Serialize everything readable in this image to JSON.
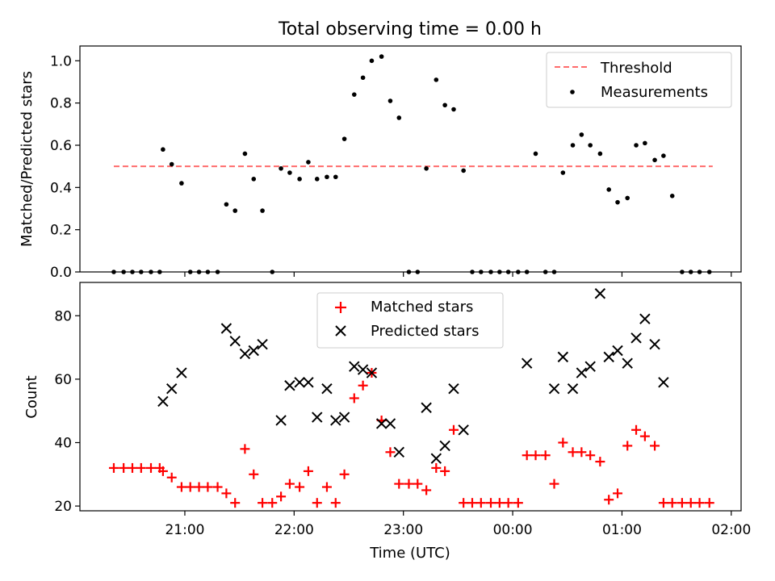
{
  "title": "Total observing time = 0.00 h",
  "x_axis": {
    "label": "Time (UTC)",
    "ticks": [
      {
        "value": 20.98,
        "label": "21:00"
      },
      {
        "value": 21.98,
        "label": "22:00"
      },
      {
        "value": 22.98,
        "label": "23:00"
      },
      {
        "value": 23.98,
        "label": "00:00"
      },
      {
        "value": 24.98,
        "label": "01:00"
      },
      {
        "value": 25.98,
        "label": "02:00"
      }
    ]
  },
  "chart_data": [
    {
      "type": "scatter",
      "ylabel": "Matched/Predicted stars",
      "xlabel": "",
      "xlim": [
        20.02,
        26.07
      ],
      "ylim": [
        0.0,
        1.07
      ],
      "yticks": [
        {
          "value": 0.0,
          "label": "0.0"
        },
        {
          "value": 0.2,
          "label": "0.2"
        },
        {
          "value": 0.4,
          "label": "0.4"
        },
        {
          "value": 0.6,
          "label": "0.6"
        },
        {
          "value": 0.8,
          "label": "0.8"
        },
        {
          "value": 1.0,
          "label": "1.0"
        }
      ],
      "legend": {
        "position": "upper right",
        "entries": [
          "Threshold",
          "Measurements"
        ]
      },
      "threshold": {
        "name": "Threshold",
        "y": 0.5,
        "x_range": [
          20.33,
          25.81
        ],
        "color": "#ff6b6b",
        "style": "dashed"
      },
      "series": [
        {
          "name": "Measurements",
          "color": "#000000",
          "x": [
            20.33,
            20.42,
            20.5,
            20.58,
            20.67,
            20.75,
            20.78,
            20.86,
            20.95,
            21.03,
            21.11,
            21.19,
            21.28,
            21.36,
            21.44,
            21.53,
            21.61,
            21.69,
            21.78,
            21.86,
            21.94,
            22.03,
            22.11,
            22.19,
            22.28,
            22.36,
            22.44,
            22.53,
            22.61,
            22.69,
            22.78,
            22.86,
            22.94,
            23.03,
            23.11,
            23.19,
            23.28,
            23.36,
            23.44,
            23.53,
            23.61,
            23.69,
            23.78,
            23.86,
            23.94,
            24.03,
            24.11,
            24.19,
            24.28,
            24.36,
            24.44,
            24.53,
            24.61,
            24.69,
            24.78,
            24.86,
            24.94,
            25.03,
            25.11,
            25.19,
            25.28,
            25.36,
            25.44,
            25.53,
            25.61,
            25.69,
            25.78
          ],
          "y": [
            0.0,
            0.0,
            0.0,
            0.0,
            0.0,
            0.0,
            0.58,
            0.51,
            0.42,
            0.0,
            0.0,
            0.0,
            0.0,
            0.32,
            0.29,
            0.56,
            0.44,
            0.29,
            0.0,
            0.49,
            0.47,
            0.44,
            0.52,
            0.44,
            0.45,
            0.45,
            0.63,
            0.84,
            0.92,
            1.0,
            1.02,
            0.81,
            0.73,
            0.0,
            0.0,
            0.49,
            0.91,
            0.79,
            0.77,
            0.48,
            0.0,
            0.0,
            0.0,
            0.0,
            0.0,
            0.0,
            0.0,
            0.56,
            0.0,
            0.0,
            0.47,
            0.6,
            0.65,
            0.6,
            0.56,
            0.39,
            0.33,
            0.35,
            0.6,
            0.61,
            0.53,
            0.55,
            0.36,
            0.0,
            0.0,
            0.0,
            0.0
          ]
        }
      ]
    },
    {
      "type": "scatter",
      "ylabel": "Count",
      "xlabel": "Time (UTC)",
      "xlim": [
        20.02,
        26.07
      ],
      "ylim": [
        18.5,
        90.5
      ],
      "yticks": [
        {
          "value": 20,
          "label": "20"
        },
        {
          "value": 40,
          "label": "40"
        },
        {
          "value": 60,
          "label": "60"
        },
        {
          "value": 80,
          "label": "80"
        }
      ],
      "legend": {
        "position": "upper center",
        "entries": [
          "Matched stars",
          "Predicted stars"
        ]
      },
      "series": [
        {
          "name": "Matched stars",
          "marker": "plus",
          "color": "#ff0000",
          "x": [
            20.33,
            20.42,
            20.5,
            20.58,
            20.67,
            20.75,
            20.78,
            20.86,
            20.95,
            21.03,
            21.11,
            21.19,
            21.28,
            21.36,
            21.44,
            21.53,
            21.61,
            21.69,
            21.78,
            21.86,
            21.94,
            22.03,
            22.11,
            22.19,
            22.28,
            22.36,
            22.44,
            22.53,
            22.61,
            22.69,
            22.78,
            22.86,
            22.94,
            23.03,
            23.11,
            23.19,
            23.28,
            23.36,
            23.44,
            23.53,
            23.61,
            23.69,
            23.78,
            23.86,
            23.94,
            24.03,
            24.11,
            24.19,
            24.28,
            24.36,
            24.44,
            24.53,
            24.61,
            24.69,
            24.78,
            24.86,
            24.94,
            25.03,
            25.11,
            25.19,
            25.28,
            25.36,
            25.44,
            25.53,
            25.61,
            25.69,
            25.78
          ],
          "y": [
            32,
            32,
            32,
            32,
            32,
            32,
            31,
            29,
            26,
            26,
            26,
            26,
            26,
            24,
            21,
            38,
            30,
            21,
            21,
            23,
            27,
            26,
            31,
            21,
            26,
            21,
            30,
            54,
            58,
            62,
            47,
            37,
            27,
            27,
            27,
            25,
            32,
            31,
            44,
            21,
            21,
            21,
            21,
            21,
            21,
            21,
            36,
            36,
            36,
            27,
            40,
            37,
            37,
            36,
            34,
            22,
            24,
            39,
            44,
            42,
            39,
            21,
            21,
            21,
            21,
            21,
            21
          ]
        },
        {
          "name": "Predicted stars",
          "marker": "x",
          "color": "#000000",
          "x": [
            20.78,
            20.86,
            20.95,
            21.36,
            21.44,
            21.53,
            21.61,
            21.69,
            21.86,
            21.94,
            22.03,
            22.11,
            22.19,
            22.28,
            22.36,
            22.44,
            22.53,
            22.61,
            22.69,
            22.78,
            22.86,
            22.94,
            23.19,
            23.28,
            23.36,
            23.44,
            23.53,
            24.11,
            24.36,
            24.44,
            24.53,
            24.61,
            24.69,
            24.78,
            24.86,
            24.94,
            25.03,
            25.11,
            25.19,
            25.28,
            25.36
          ],
          "y": [
            53,
            57,
            62,
            76,
            72,
            68,
            69,
            71,
            47,
            58,
            59,
            59,
            48,
            57,
            47,
            48,
            64,
            63,
            62,
            46,
            46,
            37,
            51,
            35,
            39,
            57,
            44,
            65,
            57,
            67,
            57,
            62,
            64,
            87,
            67,
            69,
            65,
            73,
            79,
            71,
            59
          ]
        }
      ]
    }
  ]
}
